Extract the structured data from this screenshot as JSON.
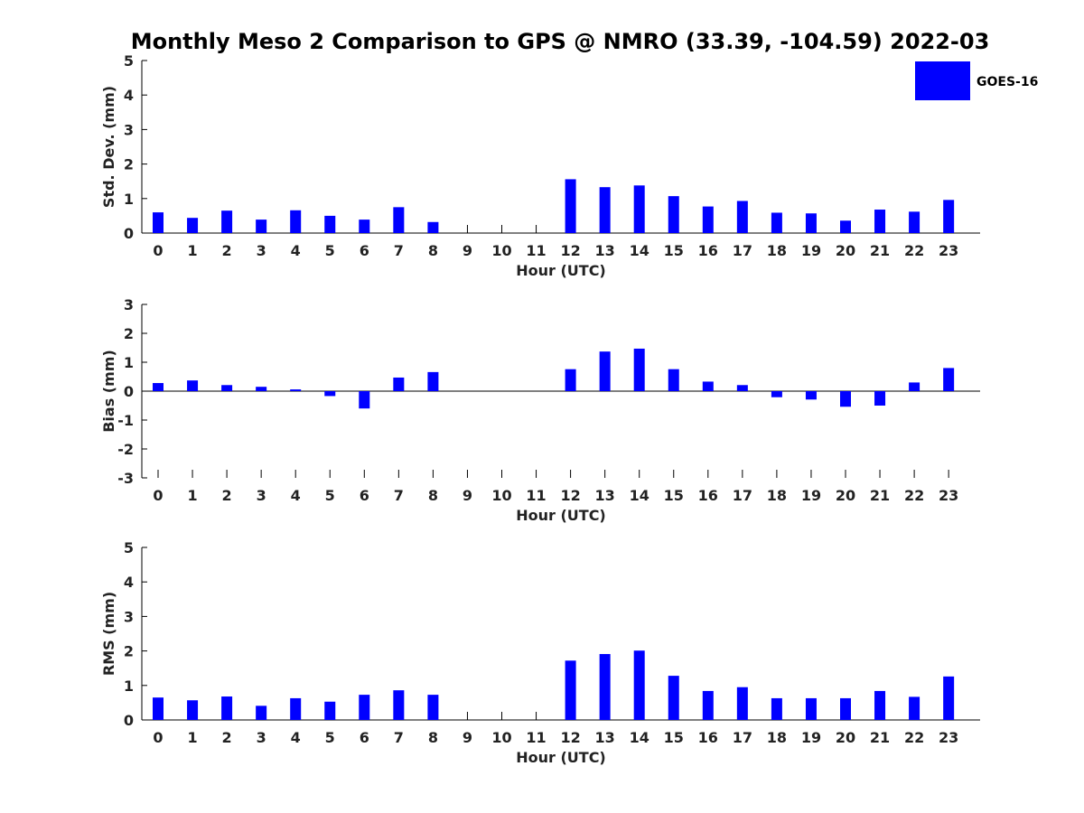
{
  "figure": {
    "title": "Monthly Meso 2 Comparison to GPS @ NMRO (33.39, -104.59) 2022-03",
    "bar_color": "#0000ff",
    "legend_label": "GOES-16"
  },
  "chart_data": [
    {
      "type": "bar",
      "name": "std",
      "title": "Monthly Meso 2 Comparison to GPS @ NMRO (33.39, -104.59) 2022-03",
      "xlabel": "Hour (UTC)",
      "ylabel": "Std. Dev. (mm)",
      "ylim": [
        0,
        5
      ],
      "yticks": [
        0,
        1,
        2,
        3,
        4,
        5
      ],
      "categories": [
        "0",
        "1",
        "2",
        "3",
        "4",
        "5",
        "6",
        "7",
        "8",
        "9",
        "10",
        "11",
        "12",
        "13",
        "14",
        "15",
        "16",
        "17",
        "18",
        "19",
        "20",
        "21",
        "22",
        "23"
      ],
      "series": [
        {
          "name": "GOES-16",
          "values": [
            0.6,
            0.44,
            0.65,
            0.39,
            0.66,
            0.5,
            0.39,
            0.75,
            0.32,
            null,
            null,
            null,
            1.56,
            1.33,
            1.38,
            1.07,
            0.77,
            0.93,
            0.59,
            0.57,
            0.36,
            0.68,
            0.62,
            0.96
          ]
        }
      ],
      "legend": "top-right",
      "grid": false
    },
    {
      "type": "bar",
      "name": "bias",
      "xlabel": "Hour (UTC)",
      "ylabel": "Bias (mm)",
      "ylim": [
        -3,
        3
      ],
      "yticks": [
        -3,
        -2,
        -1,
        0,
        1,
        2,
        3
      ],
      "categories": [
        "0",
        "1",
        "2",
        "3",
        "4",
        "5",
        "6",
        "7",
        "8",
        "9",
        "10",
        "11",
        "12",
        "13",
        "14",
        "15",
        "16",
        "17",
        "18",
        "19",
        "20",
        "21",
        "22",
        "23"
      ],
      "series": [
        {
          "name": "GOES-16",
          "values": [
            0.28,
            0.37,
            0.21,
            0.15,
            0.06,
            -0.17,
            -0.6,
            0.47,
            0.66,
            null,
            null,
            null,
            0.76,
            1.37,
            1.47,
            0.76,
            0.33,
            0.21,
            -0.21,
            -0.29,
            -0.54,
            -0.5,
            0.3,
            0.8
          ]
        }
      ],
      "grid": false
    },
    {
      "type": "bar",
      "name": "rms",
      "xlabel": "Hour (UTC)",
      "ylabel": "RMS (mm)",
      "ylim": [
        0,
        5
      ],
      "yticks": [
        0,
        1,
        2,
        3,
        4,
        5
      ],
      "categories": [
        "0",
        "1",
        "2",
        "3",
        "4",
        "5",
        "6",
        "7",
        "8",
        "9",
        "10",
        "11",
        "12",
        "13",
        "14",
        "15",
        "16",
        "17",
        "18",
        "19",
        "20",
        "21",
        "22",
        "23"
      ],
      "series": [
        {
          "name": "GOES-16",
          "values": [
            0.65,
            0.57,
            0.68,
            0.41,
            0.63,
            0.53,
            0.73,
            0.86,
            0.73,
            null,
            null,
            null,
            1.72,
            1.91,
            2.01,
            1.28,
            0.84,
            0.95,
            0.63,
            0.63,
            0.63,
            0.84,
            0.67,
            1.26
          ]
        }
      ],
      "grid": false
    }
  ]
}
